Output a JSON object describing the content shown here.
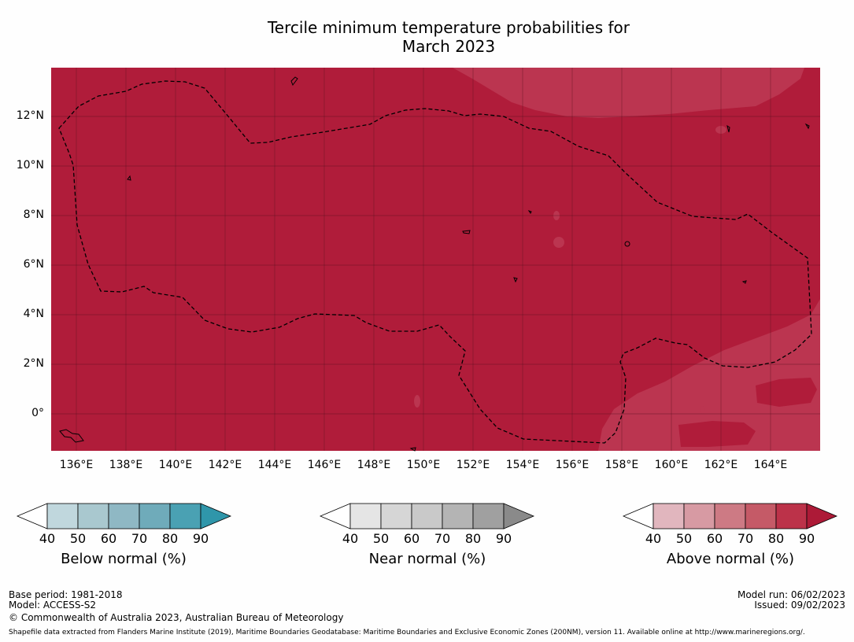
{
  "title": {
    "line1": "Tercile minimum temperature probabilities for",
    "line2": "March 2023"
  },
  "map": {
    "lat_labels": [
      "12°N",
      "10°N",
      "8°N",
      "6°N",
      "4°N",
      "2°N",
      "0°"
    ],
    "lon_labels": [
      "136°E",
      "138°E",
      "140°E",
      "142°E",
      "144°E",
      "146°E",
      "148°E",
      "150°E",
      "152°E",
      "154°E",
      "156°E",
      "158°E",
      "160°E",
      "162°E",
      "164°E"
    ],
    "colors": {
      "above_90": "#b01c3a",
      "above_80": "#bb3550"
    }
  },
  "legends": {
    "below": {
      "label": "Below normal (%)",
      "ticks": [
        "40",
        "50",
        "60",
        "70",
        "80",
        "90"
      ],
      "colors": [
        "#ffffff",
        "#c0d7dd",
        "#a9c8cf",
        "#8fb8c4",
        "#6fabba",
        "#4aa1b3",
        "#2f96aa"
      ]
    },
    "near": {
      "label": "Near normal (%)",
      "ticks": [
        "40",
        "50",
        "60",
        "70",
        "80",
        "90"
      ],
      "colors": [
        "#ffffff",
        "#e5e5e5",
        "#d6d6d6",
        "#c9c9c9",
        "#b4b4b4",
        "#a0a0a0",
        "#8a8a8a"
      ]
    },
    "above": {
      "label": "Above normal (%)",
      "ticks": [
        "40",
        "50",
        "60",
        "70",
        "80",
        "90"
      ],
      "colors": [
        "#ffffff",
        "#e1b6be",
        "#d79aa3",
        "#cd7a84",
        "#c55a67",
        "#bc3249",
        "#ad1a37"
      ]
    }
  },
  "footer": {
    "base_period": "Base period: 1981-2018",
    "model": "Model: ACCESS-S2",
    "copyright": "© Commonwealth of Australia 2023, Australian Bureau of Meteorology",
    "model_run": "Model run: 06/02/2023",
    "issued": "Issued: 09/02/2023",
    "shapefile": "Shapefile data extracted from Flanders Marine Institute (2019), Maritime Boundaries Geodatabase: Maritime Boundaries and Exclusive Economic Zones (200NM), version 11. Available online at http://www.marineregions.org/."
  }
}
